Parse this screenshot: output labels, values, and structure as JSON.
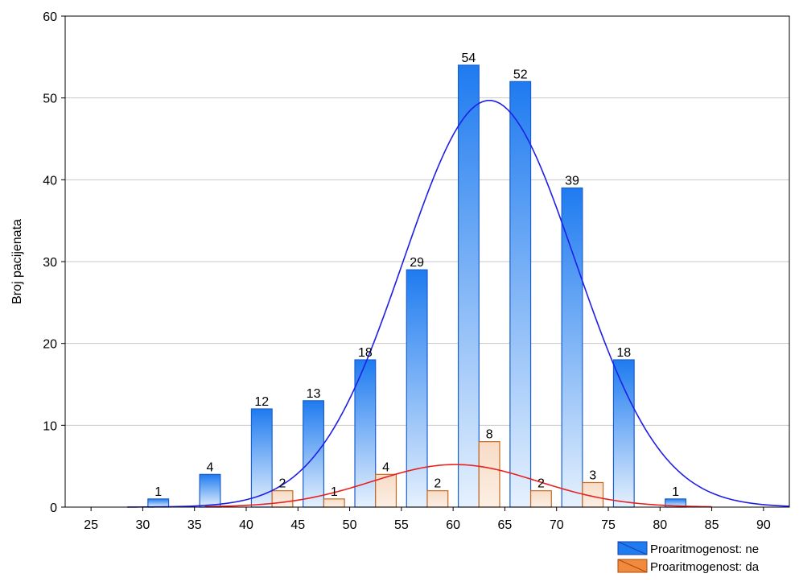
{
  "chart_data": {
    "type": "bar",
    "title": "",
    "xlabel": "",
    "ylabel": "Broj pacijenata",
    "xlim": [
      22.5,
      92.5
    ],
    "ylim": [
      0,
      60
    ],
    "x_ticks": [
      25,
      30,
      35,
      40,
      45,
      50,
      55,
      60,
      65,
      70,
      75,
      80,
      85,
      90
    ],
    "y_ticks": [
      0,
      10,
      20,
      30,
      40,
      50,
      60
    ],
    "grid": true,
    "legend_position": "bottom-right",
    "series": [
      {
        "name": "Proaritmogenost: ne",
        "color": "#1E7BF0",
        "x": [
          32.5,
          37.5,
          42.5,
          47.5,
          52.5,
          57.5,
          62.5,
          67.5,
          72.5,
          77.5,
          82.5
        ],
        "values": [
          1,
          4,
          12,
          13,
          18,
          29,
          54,
          52,
          39,
          18,
          1
        ],
        "labels": [
          "1",
          "4",
          "12",
          "13",
          "18",
          "29",
          "54",
          "52",
          "39",
          "18",
          "1"
        ],
        "curve": {
          "color": "#1F1FE8",
          "mean": 63.5,
          "sd": 8.3,
          "peak": 49.7,
          "x_range": [
            28.5,
            92.5
          ]
        }
      },
      {
        "name": "Proaritmogenost: da",
        "color": "#F08A3C",
        "x": [
          42.5,
          47.5,
          52.5,
          57.5,
          62.5,
          67.5,
          72.5
        ],
        "values": [
          2,
          1,
          4,
          2,
          8,
          2,
          3
        ],
        "labels": [
          "2",
          "1",
          "4",
          "2",
          "8",
          "2",
          "3"
        ],
        "curve": {
          "color": "#E82020",
          "mean": 60.2,
          "sd": 8.0,
          "peak": 5.2,
          "x_range": [
            36,
            85
          ]
        }
      }
    ]
  }
}
